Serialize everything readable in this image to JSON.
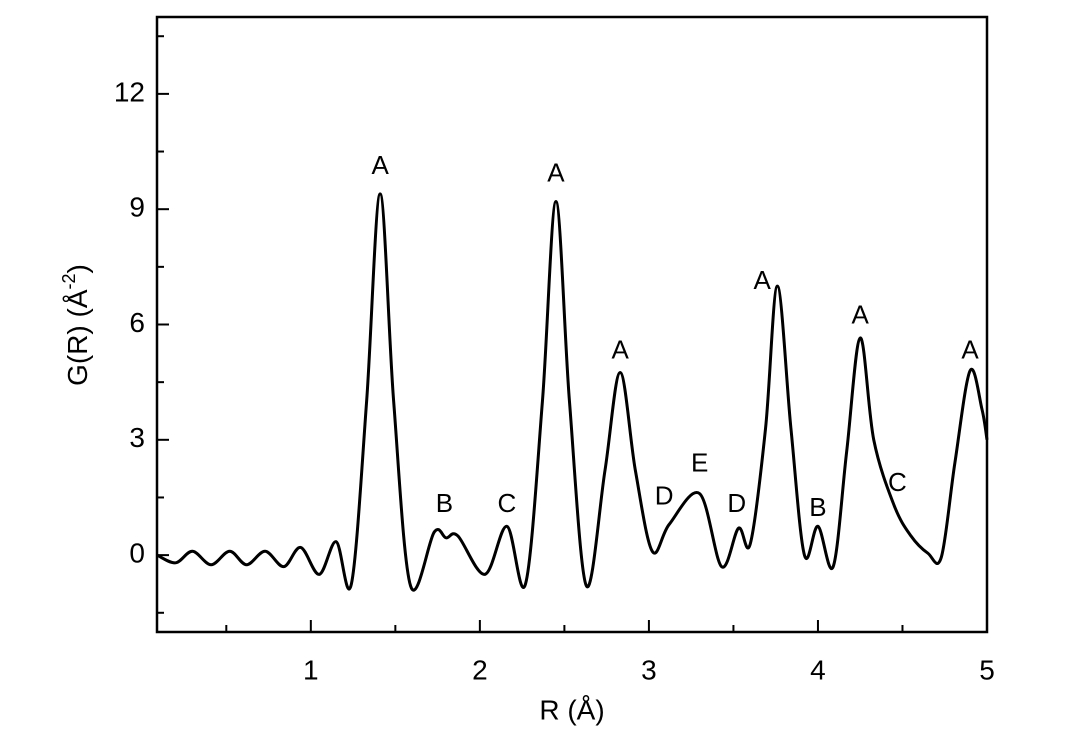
{
  "chart_data": {
    "type": "line",
    "xlabel": "R (Å)",
    "ylabel": {
      "base": "G(R) (Å",
      "sup": "-2",
      "end": ")"
    },
    "xlim": [
      0.09,
      5
    ],
    "ylim": [
      -2,
      14
    ],
    "xticks": [
      1,
      2,
      3,
      4,
      5
    ],
    "yticks": [
      0,
      3,
      6,
      9,
      12
    ],
    "xminorticks": [
      0.5,
      1.5,
      2.5,
      3.5,
      4.5
    ],
    "yminorticks": [
      -1.5,
      1.5,
      4.5,
      7.5,
      10.5,
      13.5
    ],
    "x": [
      0.09,
      0.2,
      0.3,
      0.41,
      0.52,
      0.62,
      0.73,
      0.84,
      0.94,
      1.05,
      1.15,
      1.24,
      1.33,
      1.41,
      1.49,
      1.59,
      1.73,
      1.8,
      1.87,
      2.03,
      2.16,
      2.27,
      2.37,
      2.45,
      2.53,
      2.63,
      2.74,
      2.83,
      2.92,
      3.02,
      3.12,
      3.3,
      3.43,
      3.53,
      3.6,
      3.69,
      3.76,
      3.84,
      3.92,
      4.0,
      4.09,
      4.17,
      4.25,
      4.33,
      4.45,
      4.55,
      4.65,
      4.73,
      4.81,
      4.9,
      4.97,
      5.0
    ],
    "series": [
      {
        "color": "#000000",
        "values": [
          0,
          -0.2,
          0.1,
          -0.25,
          0.1,
          -0.25,
          0.1,
          -0.3,
          0.2,
          -0.5,
          0.35,
          -0.75,
          4.0,
          9.4,
          4.0,
          -0.8,
          0.6,
          0.45,
          0.5,
          -0.5,
          0.75,
          -0.75,
          4.0,
          9.2,
          4.0,
          -0.8,
          2.2,
          4.75,
          2.2,
          0.1,
          0.8,
          1.6,
          -0.3,
          0.7,
          0.3,
          3.3,
          7.0,
          3.3,
          0,
          0.75,
          -0.3,
          2.7,
          5.65,
          3.0,
          1.3,
          0.5,
          0.05,
          -0.05,
          2.4,
          4.8,
          3.8,
          3.0
        ]
      }
    ],
    "annotations": [
      "A",
      "B",
      "C",
      "A",
      "A",
      "D",
      "E",
      "D",
      "A",
      "B",
      "A",
      "C",
      "A"
    ]
  }
}
